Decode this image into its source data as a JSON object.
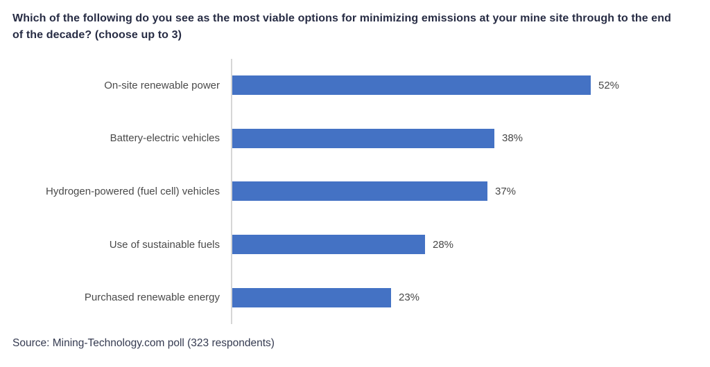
{
  "title": "Which of the following do you see as the most viable options for minimizing emissions at your mine site through to the end of the decade? (choose up to 3)",
  "source_note": "Source: Mining-Technology.com poll (323 respondents)",
  "colors": {
    "bar": "#4472C4",
    "title_text": "#272C44",
    "category_text": "#4A4A4A",
    "value_text": "#474747",
    "axis_line": "#D6D6D6",
    "background": "#FFFFFF"
  },
  "chart_data": {
    "type": "bar",
    "orientation": "horizontal",
    "title": "Which of the following do you see as the most viable options for minimizing emissions at your mine site through to the end of the decade? (choose up to 3)",
    "categories": [
      "On-site renewable power",
      "Battery-electric vehicles",
      "Hydrogen-powered (fuel cell) vehicles",
      "Use of sustainable fuels",
      "Purchased renewable energy"
    ],
    "values": [
      52,
      38,
      37,
      28,
      23
    ],
    "value_labels": [
      "52%",
      "38%",
      "37%",
      "28%",
      "23%"
    ],
    "unit": "%",
    "xlabel": "",
    "ylabel": "",
    "xlim": [
      0,
      60
    ],
    "grid": false,
    "legend": false,
    "data_labels_position": "outside-end"
  }
}
